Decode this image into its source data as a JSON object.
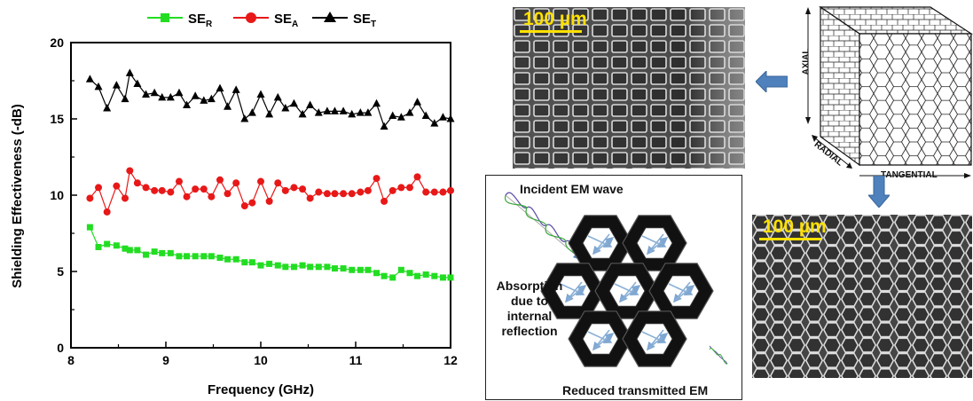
{
  "chart_data": {
    "type": "line",
    "title": "",
    "xlabel": "Frequency (GHz)",
    "ylabel": "Shielding Effectiveness (-dB)",
    "xlim": [
      8,
      12
    ],
    "ylim": [
      0,
      20
    ],
    "xticks": [
      "8",
      "9",
      "10",
      "11",
      "12"
    ],
    "yticks": [
      "0",
      "5",
      "10",
      "15",
      "20"
    ],
    "grid": false,
    "legend": "top",
    "x": [
      8.2,
      8.29,
      8.38,
      8.48,
      8.57,
      8.62,
      8.7,
      8.79,
      8.88,
      8.96,
      9.05,
      9.14,
      9.22,
      9.31,
      9.4,
      9.48,
      9.57,
      9.65,
      9.74,
      9.83,
      9.91,
      10.0,
      10.09,
      10.18,
      10.26,
      10.35,
      10.44,
      10.52,
      10.61,
      10.7,
      10.78,
      10.87,
      10.96,
      11.05,
      11.13,
      11.22,
      11.3,
      11.39,
      11.48,
      11.57,
      11.65,
      11.74,
      11.83,
      11.92,
      12.0
    ],
    "series": [
      {
        "name": "SE_R",
        "marker": "square",
        "color": "#22dd22",
        "values": [
          7.9,
          6.6,
          6.8,
          6.7,
          6.5,
          6.4,
          6.4,
          6.1,
          6.3,
          6.2,
          6.2,
          6.0,
          6.0,
          6.0,
          6.0,
          6.0,
          5.9,
          5.8,
          5.8,
          5.6,
          5.6,
          5.4,
          5.5,
          5.4,
          5.3,
          5.3,
          5.4,
          5.3,
          5.3,
          5.3,
          5.2,
          5.2,
          5.1,
          5.1,
          5.1,
          4.9,
          4.7,
          4.6,
          5.1,
          4.9,
          4.7,
          4.8,
          4.7,
          4.6,
          4.6
        ]
      },
      {
        "name": "SE_A",
        "marker": "circle",
        "color": "#e81818",
        "values": [
          9.8,
          10.5,
          8.9,
          10.6,
          9.8,
          11.6,
          10.8,
          10.5,
          10.3,
          10.3,
          10.2,
          10.9,
          9.9,
          10.4,
          10.4,
          9.9,
          11.0,
          10.1,
          10.8,
          9.3,
          9.5,
          10.9,
          9.6,
          10.8,
          10.3,
          10.5,
          10.4,
          9.8,
          10.2,
          10.1,
          10.1,
          10.1,
          10.1,
          10.2,
          10.3,
          11.1,
          9.6,
          10.3,
          10.5,
          10.5,
          11.2,
          10.2,
          10.2,
          10.2,
          10.3
        ]
      },
      {
        "name": "SE_T",
        "marker": "triangle",
        "color": "#000000",
        "values": [
          17.6,
          17.1,
          15.7,
          17.2,
          16.3,
          18.0,
          17.3,
          16.6,
          16.7,
          16.4,
          16.4,
          16.7,
          15.9,
          16.5,
          16.2,
          16.3,
          17.0,
          15.8,
          16.9,
          15.0,
          15.4,
          16.6,
          15.3,
          16.4,
          15.7,
          16.0,
          15.3,
          15.9,
          15.4,
          15.5,
          15.5,
          15.5,
          15.3,
          15.4,
          15.4,
          16.0,
          14.5,
          15.2,
          15.1,
          15.4,
          16.1,
          15.2,
          14.7,
          15.1,
          15.0
        ]
      }
    ]
  },
  "legend": [
    {
      "main": "SE",
      "sub": "R"
    },
    {
      "main": "SE",
      "sub": "A"
    },
    {
      "main": "SE",
      "sub": "T"
    }
  ],
  "sem": {
    "top_scale": "100 µm",
    "bottom_scale": "100 µm"
  },
  "cube": {
    "axial": "AXIAL",
    "radial": "RADIAL",
    "tangential": "TANGENTIAL"
  },
  "wave": {
    "incident": "Incident EM wave",
    "absorption": [
      "Absorption",
      "due to",
      "internal",
      "reflection"
    ],
    "transmitted": "Reduced transmitted EM wave"
  },
  "colors": {
    "arrow": "#4f81bd",
    "hex_arrow": "#8ab0d6"
  }
}
